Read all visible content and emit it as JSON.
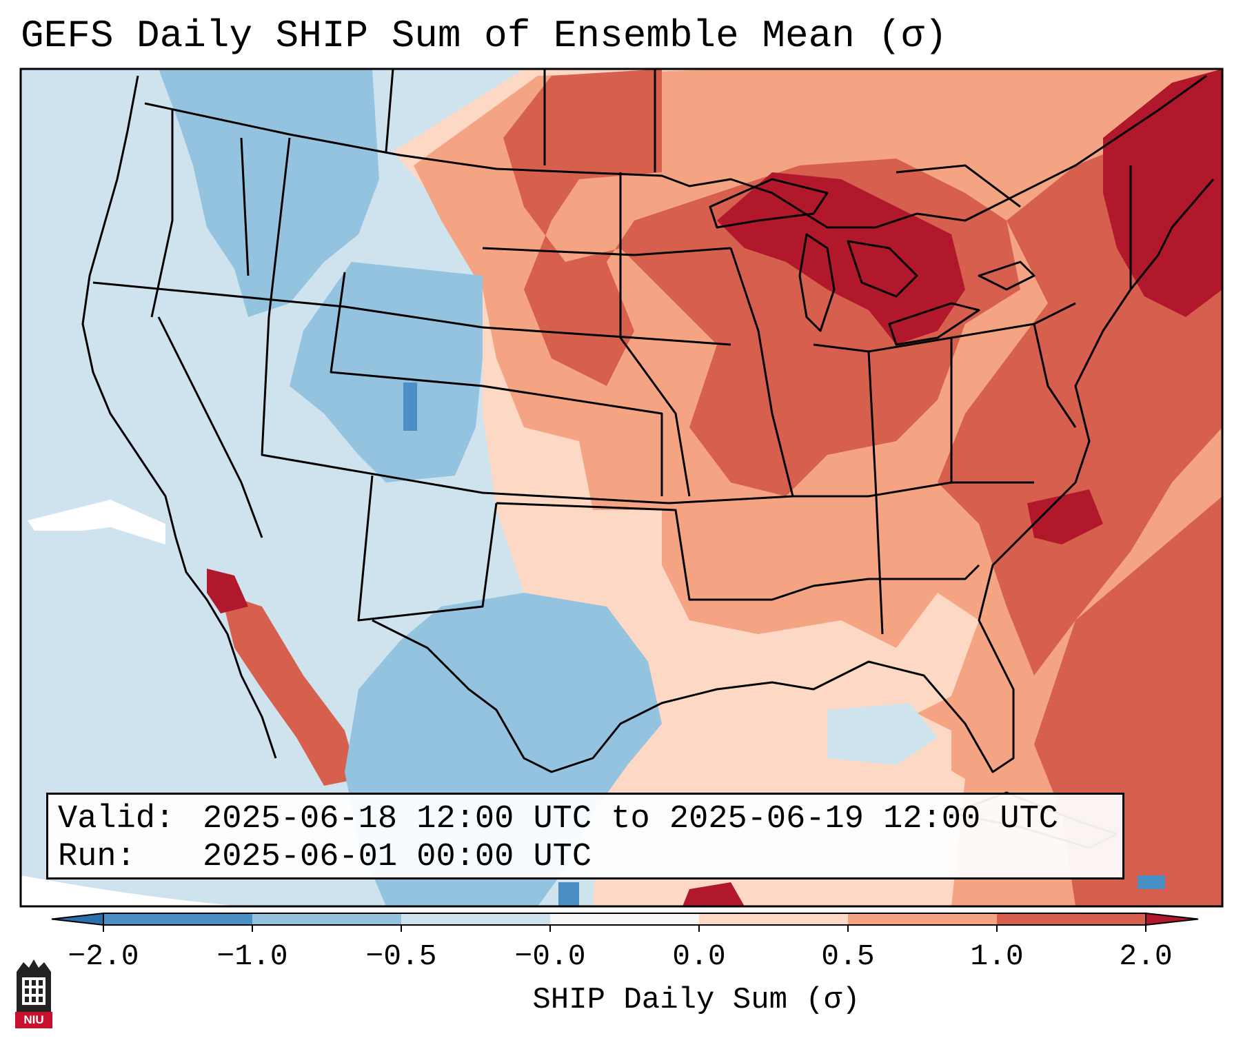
{
  "title": "GEFS Daily SHIP Sum of Ensemble Mean (σ)",
  "info": {
    "valid_label": "Valid:",
    "valid_value": "2025-06-18 12:00 UTC to 2025-06-19 12:00 UTC",
    "run_label": "Run:",
    "run_value": "2025-06-01 00:00 UTC"
  },
  "colorbar": {
    "label": "SHIP Daily Sum (σ)",
    "ticks": [
      "−2.0",
      "−1.0",
      "−0.5",
      "−0.0",
      "0.0",
      "0.5",
      "1.0",
      "2.0"
    ],
    "colors": {
      "under": "#2c6fad",
      "b1": "#4a90c4",
      "b2": "#93c3de",
      "b3": "#cfe3ef",
      "b4": "#f7f7f7",
      "b5": "#fdd8c4",
      "b6": "#f4a483",
      "b7": "#d6604d",
      "over": "#b2182b"
    }
  },
  "logo": {
    "text": "NIU",
    "color": "#c8102e"
  }
}
